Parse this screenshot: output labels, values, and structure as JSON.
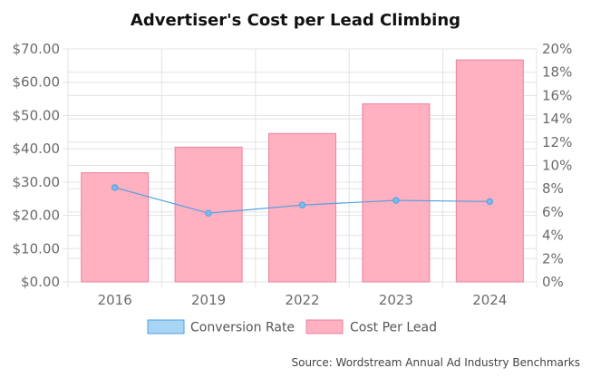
{
  "chart_data": {
    "type": "bar",
    "title": "Advertiser's Cost per Lead Climbing",
    "categories": [
      "2016",
      "2019",
      "2022",
      "2023",
      "2024"
    ],
    "series": [
      {
        "name": "Cost Per Lead",
        "type": "bar",
        "axis": "left",
        "values": [
          32.8,
          40.5,
          44.6,
          53.5,
          66.7
        ],
        "color": "#ffb0c1",
        "border_color": "#e8839f"
      },
      {
        "name": "Conversion Rate",
        "type": "line",
        "axis": "right",
        "values": [
          8.1,
          5.9,
          6.6,
          7.0,
          6.9
        ],
        "color": "#4ea1e0"
      }
    ],
    "y_left": {
      "min": 0,
      "max": 70,
      "step": 10,
      "tick_labels": [
        "$0.00",
        "$10.00",
        "$20.00",
        "$30.00",
        "$40.00",
        "$50.00",
        "$60.00",
        "$70.00"
      ]
    },
    "y_right": {
      "min": 0,
      "max": 20,
      "step": 2,
      "tick_labels": [
        "0%",
        "2%",
        "4%",
        "6%",
        "8%",
        "10%",
        "12%",
        "14%",
        "16%",
        "18%",
        "20%"
      ]
    },
    "legend": {
      "position": "bottom",
      "items": [
        {
          "label": "Conversion Rate",
          "fill": "#a8d4f5",
          "stroke": "#4ea1e0"
        },
        {
          "label": "Cost Per Lead",
          "fill": "#ffb0c1",
          "stroke": "#e8839f"
        }
      ]
    },
    "source": "Source: Wordstream Annual Ad Industry Benchmarks",
    "grid": true
  }
}
